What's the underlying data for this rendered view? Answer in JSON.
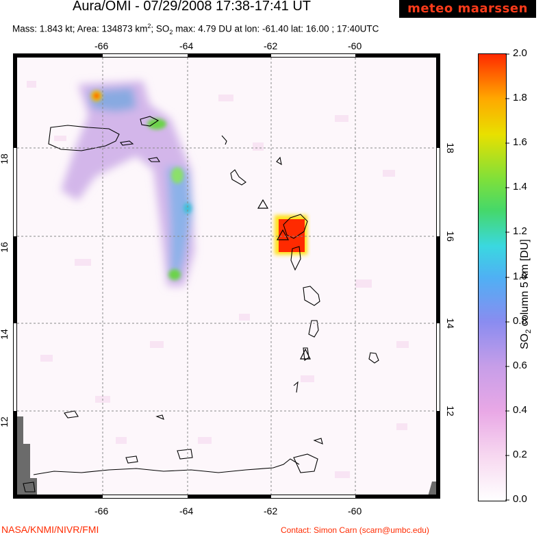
{
  "header": {
    "title": "Aura/OMI - 07/29/2008 17:38-17:41 UT",
    "logo_text": "meteo maarssen",
    "mass": "Mass: 1.843 kt;",
    "area": "Area: 134873 km",
    "so2_max": "SO",
    "so2_max_rest": " max: 4.79 DU at lon: -61.40 lat: 16.00 ; 17:40UTC"
  },
  "map": {
    "lon_ticks": [
      "-66",
      "-64",
      "-62",
      "-60"
    ],
    "lat_ticks": [
      "18",
      "16",
      "14",
      "12"
    ],
    "colors": {
      "land": "#6b6b6b",
      "coast": "#000000",
      "grid": "#888888",
      "plume_red": "#ff2a00"
    }
  },
  "colorbar": {
    "labels": [
      "2.0",
      "1.8",
      "1.6",
      "1.4",
      "1.2",
      "1.0",
      "0.8",
      "0.6",
      "0.4",
      "0.2",
      "0.0"
    ],
    "title_prefix": "SO",
    "title_sub": "2",
    "title_rest": " column 5 km [DU]"
  },
  "footer": {
    "left": "NASA/KNMI/NIVR/FMI",
    "right": "Contact: Simon Carn (scarn@umbc.edu)"
  }
}
